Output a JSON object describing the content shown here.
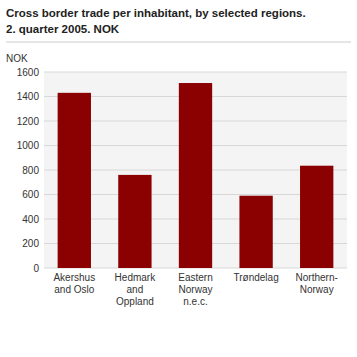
{
  "chart_data": {
    "type": "bar",
    "title": "Cross border trade per inhabitant, by selected regions.",
    "subtitle": "2. quarter 2005. NOK",
    "ylabel": "NOK",
    "categories": [
      "Akershus\nand Oslo",
      "Hedmark\nand\nOppland",
      "Eastern\nNorway\nn.e.c.",
      "Trøndelag",
      "Northern-\nNorway"
    ],
    "values": [
      1430,
      760,
      1510,
      590,
      835
    ],
    "color": "#8B0000",
    "ylim": [
      0,
      1600
    ],
    "yticks": [
      0,
      200,
      400,
      600,
      800,
      1000,
      1200,
      1400,
      1600
    ],
    "grid": true
  }
}
